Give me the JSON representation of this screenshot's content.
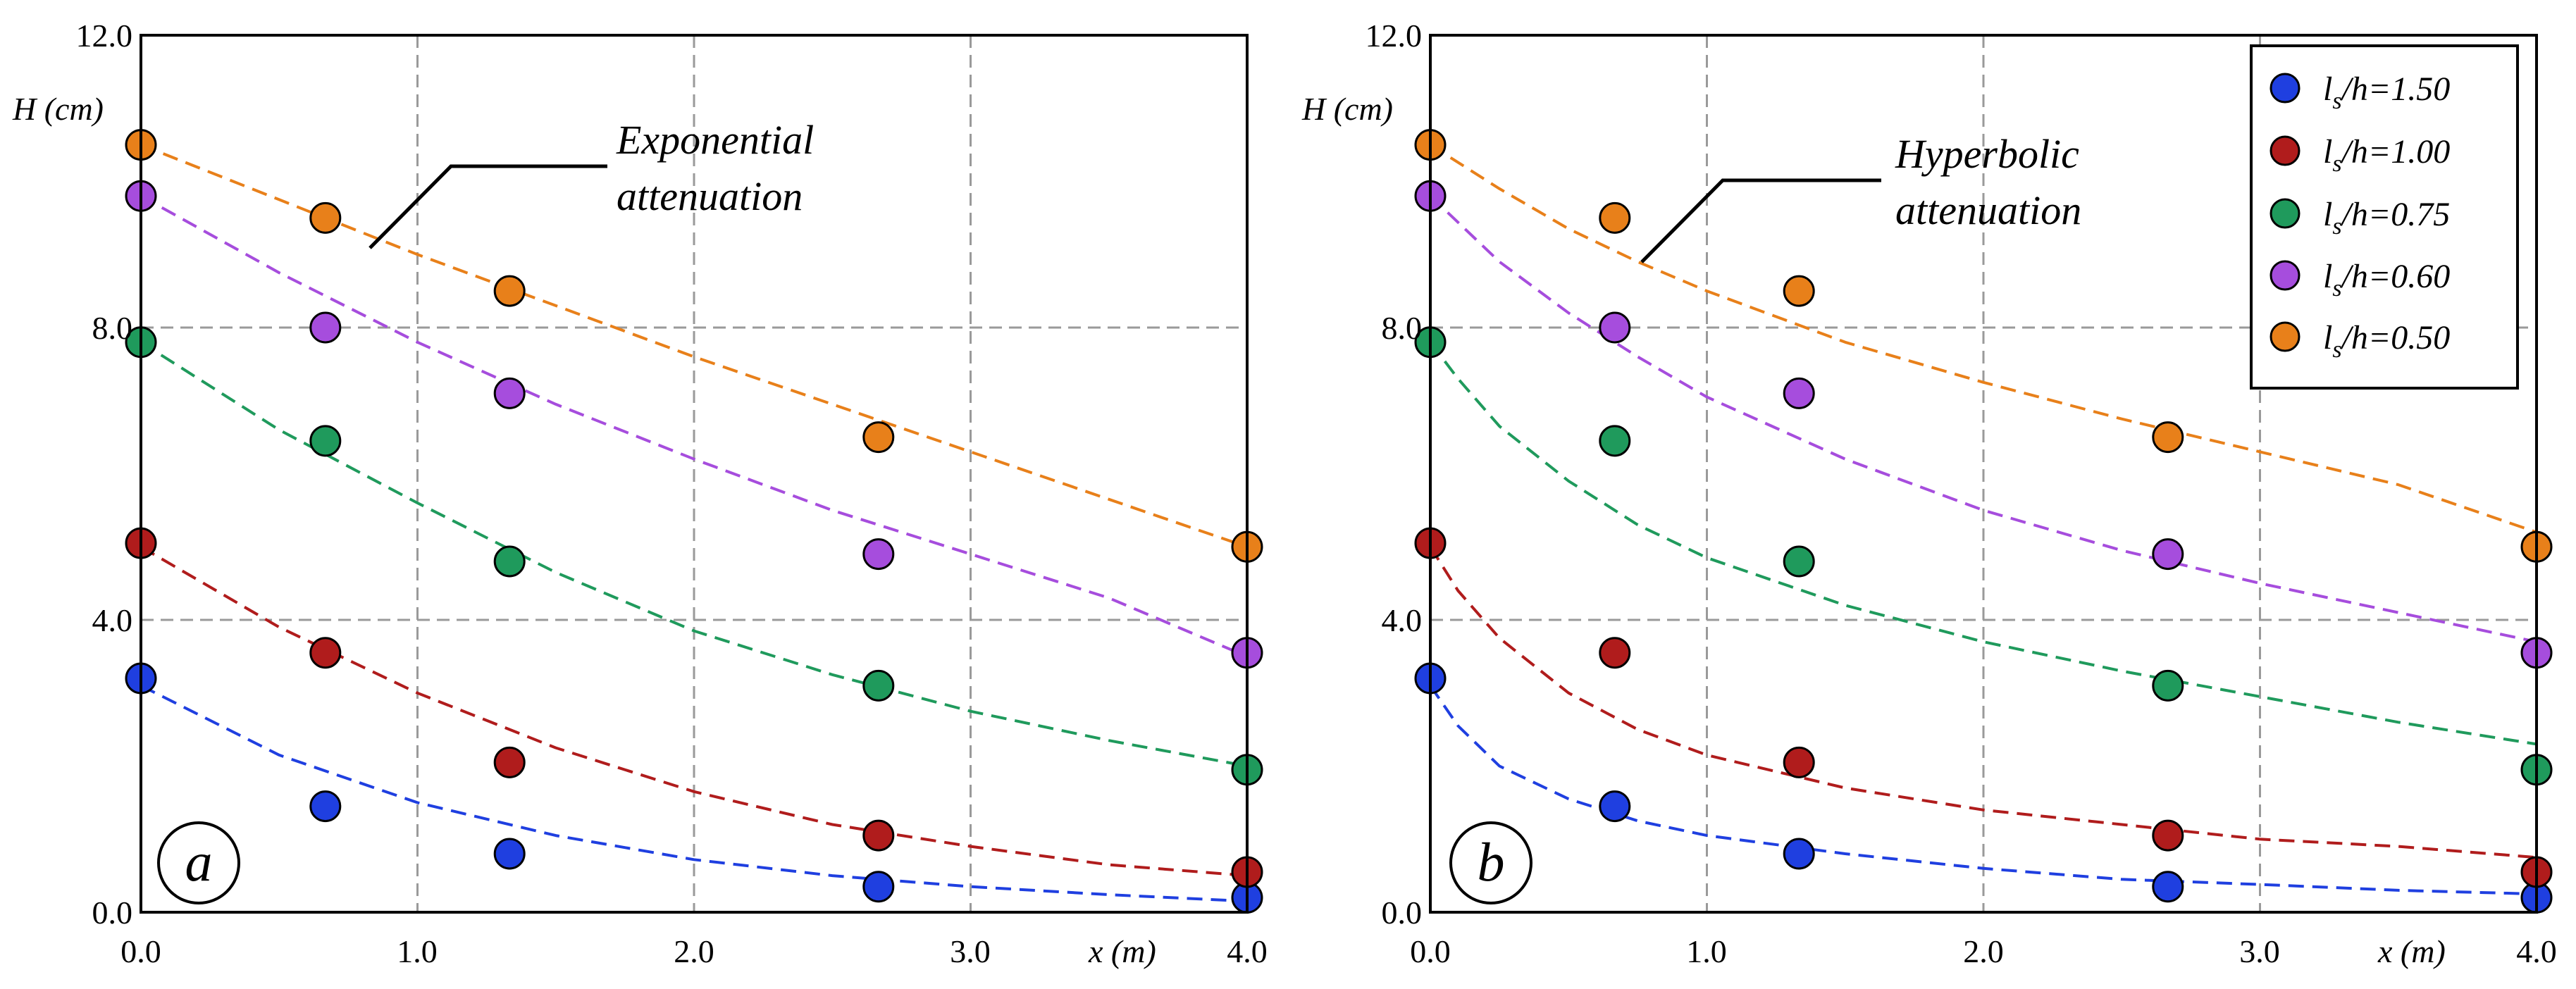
{
  "chart_data": [
    {
      "type": "scatter",
      "panel_label": "a",
      "annotation": [
        "Exponential",
        "attenuation"
      ],
      "xlabel": "x (m)",
      "ylabel": "H (cm)",
      "xlim": [
        0,
        4
      ],
      "ylim": [
        0,
        12
      ],
      "xticks": [
        "0.0",
        "1.0",
        "2.0",
        "3.0",
        "4.0"
      ],
      "yticks": [
        "0.0",
        "4.0",
        "8.0",
        "12.0"
      ],
      "grid": true,
      "fit": "exponential",
      "series": [
        {
          "name": "ls/h=1.50",
          "color": "#1f3fe0",
          "x": [
            0,
            0.667,
            1.333,
            2.667,
            4.0
          ],
          "y": [
            3.2,
            1.45,
            0.8,
            0.35,
            0.2
          ],
          "fit_x": [
            0,
            0.5,
            1.0,
            1.5,
            2.0,
            2.5,
            3.0,
            3.5,
            4.0
          ],
          "fit_y": [
            3.1,
            2.15,
            1.5,
            1.05,
            0.72,
            0.5,
            0.35,
            0.24,
            0.15
          ]
        },
        {
          "name": "ls/h=1.00",
          "color": "#b01c1c",
          "x": [
            0,
            0.667,
            1.333,
            2.667,
            4.0
          ],
          "y": [
            5.05,
            3.55,
            2.05,
            1.05,
            0.55
          ],
          "fit_x": [
            0,
            0.5,
            1.0,
            1.5,
            2.0,
            2.5,
            3.0,
            3.5,
            4.0
          ],
          "fit_y": [
            5.0,
            3.9,
            3.0,
            2.25,
            1.65,
            1.2,
            0.9,
            0.65,
            0.5
          ]
        },
        {
          "name": "ls/h=0.75",
          "color": "#1f9a5c",
          "x": [
            0,
            0.667,
            1.333,
            2.667,
            4.0
          ],
          "y": [
            7.8,
            6.45,
            4.8,
            3.1,
            1.95
          ],
          "fit_x": [
            0,
            0.5,
            1.0,
            1.5,
            2.0,
            2.5,
            3.0,
            3.5,
            4.0
          ],
          "fit_y": [
            7.8,
            6.6,
            5.6,
            4.65,
            3.85,
            3.25,
            2.75,
            2.35,
            2.0
          ]
        },
        {
          "name": "ls/h=0.60",
          "color": "#a64ddd",
          "x": [
            0,
            0.667,
            1.333,
            2.667,
            4.0
          ],
          "y": [
            9.8,
            8.0,
            7.1,
            4.9,
            3.55
          ],
          "fit_x": [
            0,
            0.5,
            1.0,
            1.5,
            2.0,
            2.5,
            3.0,
            3.5,
            4.0
          ],
          "fit_y": [
            9.8,
            8.75,
            7.8,
            6.95,
            6.2,
            5.5,
            4.9,
            4.3,
            3.5
          ]
        },
        {
          "name": "ls/h=0.50",
          "color": "#e8801a",
          "x": [
            0,
            0.667,
            1.333,
            2.667,
            4.0
          ],
          "y": [
            10.5,
            9.5,
            8.5,
            6.5,
            5.0
          ],
          "fit_x": [
            0,
            0.5,
            1.0,
            1.5,
            2.0,
            2.5,
            3.0,
            3.5,
            4.0
          ],
          "fit_y": [
            10.5,
            9.75,
            9.0,
            8.3,
            7.6,
            6.95,
            6.3,
            5.65,
            5.0
          ]
        }
      ]
    },
    {
      "type": "scatter",
      "panel_label": "b",
      "annotation": [
        "Hyperbolic",
        "attenuation"
      ],
      "xlabel": "x (m)",
      "ylabel": "H (cm)",
      "xlim": [
        0,
        4
      ],
      "ylim": [
        0,
        12
      ],
      "xticks": [
        "0.0",
        "1.0",
        "2.0",
        "3.0",
        "4.0"
      ],
      "yticks": [
        "0.0",
        "4.0",
        "8.0",
        "12.0"
      ],
      "grid": true,
      "fit": "hyperbolic",
      "legend_position": "top-right",
      "series": [
        {
          "name": "ls/h=1.50",
          "color": "#1f3fe0",
          "x": [
            0,
            0.667,
            1.333,
            2.667,
            4.0
          ],
          "y": [
            3.2,
            1.45,
            0.8,
            0.35,
            0.2
          ],
          "fit_x": [
            0,
            0.1,
            0.25,
            0.5,
            0.75,
            1.0,
            1.5,
            2.0,
            2.5,
            3.0,
            3.5,
            4.0
          ],
          "fit_y": [
            3.1,
            2.55,
            2.0,
            1.55,
            1.25,
            1.05,
            0.8,
            0.6,
            0.45,
            0.38,
            0.3,
            0.25
          ]
        },
        {
          "name": "ls/h=1.00",
          "color": "#b01c1c",
          "x": [
            0,
            0.667,
            1.333,
            2.667,
            4.0
          ],
          "y": [
            5.05,
            3.55,
            2.05,
            1.05,
            0.55
          ],
          "fit_x": [
            0,
            0.1,
            0.25,
            0.5,
            0.75,
            1.0,
            1.5,
            2.0,
            2.5,
            3.0,
            3.5,
            4.0
          ],
          "fit_y": [
            5.0,
            4.4,
            3.75,
            3.0,
            2.5,
            2.15,
            1.7,
            1.4,
            1.2,
            1.0,
            0.9,
            0.75
          ]
        },
        {
          "name": "ls/h=0.75",
          "color": "#1f9a5c",
          "x": [
            0,
            0.667,
            1.333,
            2.667,
            4.0
          ],
          "y": [
            7.8,
            6.45,
            4.8,
            3.1,
            1.95
          ],
          "fit_x": [
            0,
            0.1,
            0.25,
            0.5,
            0.75,
            1.0,
            1.5,
            2.0,
            2.5,
            3.0,
            3.5,
            4.0
          ],
          "fit_y": [
            7.8,
            7.3,
            6.65,
            5.9,
            5.3,
            4.85,
            4.2,
            3.7,
            3.3,
            2.95,
            2.6,
            2.3
          ]
        },
        {
          "name": "ls/h=0.60",
          "color": "#a64ddd",
          "x": [
            0,
            0.667,
            1.333,
            2.667,
            4.0
          ],
          "y": [
            9.8,
            8.0,
            7.1,
            4.9,
            3.55
          ],
          "fit_x": [
            0,
            0.25,
            0.5,
            0.75,
            1.0,
            1.5,
            2.0,
            2.5,
            3.0,
            3.5,
            4.0
          ],
          "fit_y": [
            9.8,
            8.9,
            8.2,
            7.6,
            7.05,
            6.2,
            5.5,
            4.95,
            4.5,
            4.1,
            3.7
          ]
        },
        {
          "name": "ls/h=0.50",
          "color": "#e8801a",
          "x": [
            0,
            0.667,
            1.333,
            2.667,
            4.0
          ],
          "y": [
            10.5,
            9.5,
            8.5,
            6.5,
            5.0
          ],
          "fit_x": [
            0,
            0.25,
            0.5,
            0.75,
            1.0,
            1.5,
            2.0,
            2.5,
            3.0,
            3.5,
            4.0
          ],
          "fit_y": [
            10.5,
            9.9,
            9.35,
            8.9,
            8.5,
            7.8,
            7.25,
            6.75,
            6.3,
            5.85,
            5.2
          ]
        }
      ]
    }
  ],
  "legend": [
    {
      "main": "l",
      "sub": "s",
      "rest": "/h=1.50",
      "color": "#1f3fe0"
    },
    {
      "main": "l",
      "sub": "s",
      "rest": "/h=1.00",
      "color": "#b01c1c"
    },
    {
      "main": "l",
      "sub": "s",
      "rest": "/h=0.75",
      "color": "#1f9a5c"
    },
    {
      "main": "l",
      "sub": "s",
      "rest": "/h=0.60",
      "color": "#a64ddd"
    },
    {
      "main": "l",
      "sub": "s",
      "rest": "/h=0.50",
      "color": "#e8801a"
    }
  ]
}
